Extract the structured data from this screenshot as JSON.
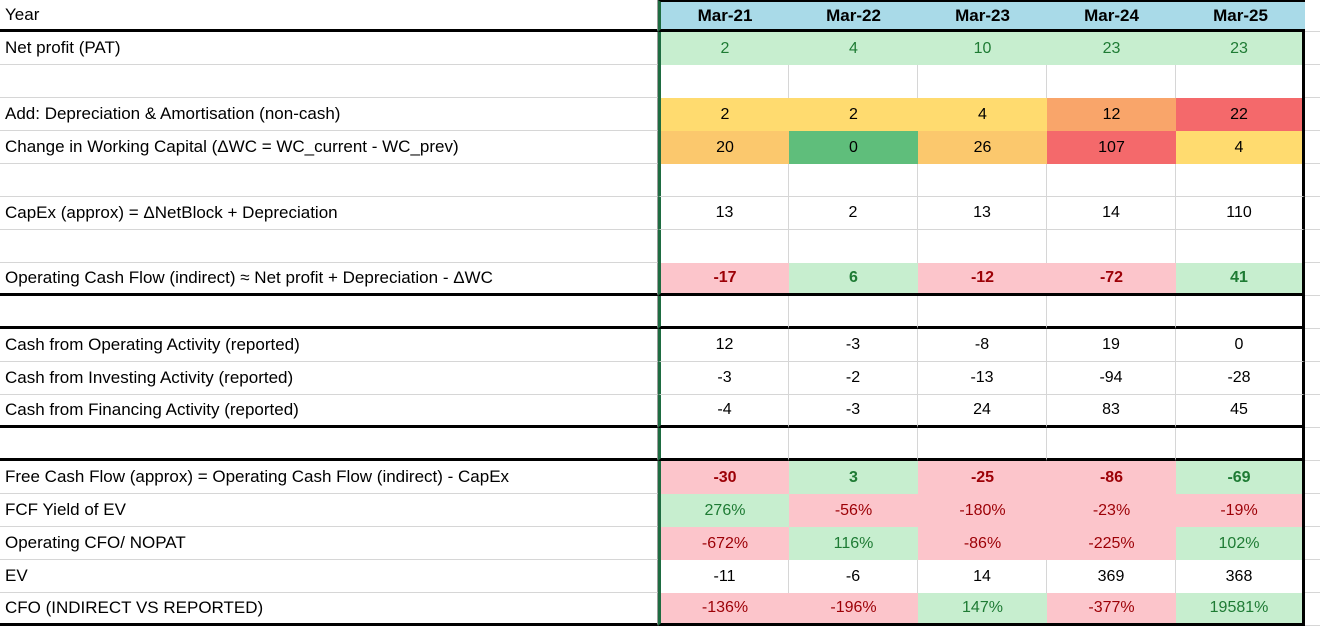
{
  "sheet": {
    "corner_label": "Year",
    "columns": [
      "Mar-21",
      "Mar-22",
      "Mar-23",
      "Mar-24",
      "Mar-25"
    ],
    "rows": [
      {
        "label": "Net profit (PAT)",
        "values": [
          "2",
          "4",
          "10",
          "23",
          "23"
        ],
        "styles": [
          "good",
          "good",
          "good",
          "good",
          "good"
        ],
        "bold": false,
        "thick_bottom": false
      },
      {
        "label": "",
        "values": [
          "",
          "",
          "",
          "",
          ""
        ],
        "styles": [
          "blank",
          "blank",
          "blank",
          "blank",
          "blank"
        ],
        "bold": false,
        "thick_bottom": false
      },
      {
        "label": "Add: Depreciation & Amortisation (non-cash)",
        "values": [
          "2",
          "2",
          "4",
          "12",
          "22"
        ],
        "styles": [
          "y",
          "y",
          "y",
          "o",
          "r"
        ],
        "bold": false,
        "thick_bottom": false
      },
      {
        "label": "Change in Working Capital (ΔWC = WC_current - WC_prev)",
        "values": [
          "20",
          "0",
          "26",
          "107",
          "4"
        ],
        "styles": [
          "lo",
          "gs",
          "lo",
          "r",
          "y"
        ],
        "bold": false,
        "thick_bottom": false
      },
      {
        "label": "",
        "values": [
          "",
          "",
          "",
          "",
          ""
        ],
        "styles": [
          "blank",
          "blank",
          "blank",
          "blank",
          "blank"
        ],
        "bold": false,
        "thick_bottom": false
      },
      {
        "label": "CapEx (approx) = ΔNetBlock + Depreciation",
        "values": [
          "13",
          "2",
          "13",
          "14",
          "110"
        ],
        "styles": [
          "plain",
          "plain",
          "plain",
          "plain",
          "plain"
        ],
        "bold": false,
        "thick_bottom": false
      },
      {
        "label": "",
        "values": [
          "",
          "",
          "",
          "",
          ""
        ],
        "styles": [
          "blank",
          "blank",
          "blank",
          "blank",
          "blank"
        ],
        "bold": false,
        "thick_bottom": false
      },
      {
        "label": "Operating Cash Flow (indirect) ≈ Net profit + Depreciation - ΔWC",
        "values": [
          "-17",
          "6",
          "-12",
          "-72",
          "41"
        ],
        "styles": [
          "bad",
          "good",
          "bad",
          "bad",
          "good"
        ],
        "bold": true,
        "thick_bottom": true
      },
      {
        "label": "",
        "values": [
          "",
          "",
          "",
          "",
          ""
        ],
        "styles": [
          "blank",
          "blank",
          "blank",
          "blank",
          "blank"
        ],
        "bold": false,
        "thick_bottom": true
      },
      {
        "label": "Cash from Operating Activity (reported)",
        "values": [
          "12",
          "-3",
          "-8",
          "19",
          "0"
        ],
        "styles": [
          "plain",
          "plain",
          "plain",
          "plain",
          "plain"
        ],
        "bold": false,
        "thick_bottom": false
      },
      {
        "label": "Cash from Investing Activity (reported)",
        "values": [
          "-3",
          "-2",
          "-13",
          "-94",
          "-28"
        ],
        "styles": [
          "plain",
          "plain",
          "plain",
          "plain",
          "plain"
        ],
        "bold": false,
        "thick_bottom": false
      },
      {
        "label": "Cash from Financing Activity (reported)",
        "values": [
          "-4",
          "-3",
          "24",
          "83",
          "45"
        ],
        "styles": [
          "plain",
          "plain",
          "plain",
          "plain",
          "plain"
        ],
        "bold": false,
        "thick_bottom": true
      },
      {
        "label": "",
        "values": [
          "",
          "",
          "",
          "",
          ""
        ],
        "styles": [
          "blank",
          "blank",
          "blank",
          "blank",
          "blank"
        ],
        "bold": false,
        "thick_bottom": true
      },
      {
        "label": "Free Cash Flow (approx) = Operating Cash Flow (indirect) - CapEx",
        "values": [
          "-30",
          "3",
          "-25",
          "-86",
          "-69"
        ],
        "styles": [
          "bad",
          "good",
          "bad",
          "bad",
          "good"
        ],
        "bold": true,
        "thick_bottom": false
      },
      {
        "label": "FCF Yield of EV",
        "values": [
          "276%",
          "-56%",
          "-180%",
          "-23%",
          "-19%"
        ],
        "styles": [
          "good",
          "bad",
          "bad",
          "bad",
          "bad"
        ],
        "bold": false,
        "thick_bottom": false
      },
      {
        "label": "Operating CFO/ NOPAT",
        "values": [
          "-672%",
          "116%",
          "-86%",
          "-225%",
          "102%"
        ],
        "styles": [
          "bad",
          "good",
          "bad",
          "bad",
          "good"
        ],
        "bold": false,
        "thick_bottom": false
      },
      {
        "label": "EV",
        "values": [
          "-11",
          "-6",
          "14",
          "369",
          "368"
        ],
        "styles": [
          "plain",
          "plain",
          "plain",
          "plain",
          "plain"
        ],
        "bold": false,
        "thick_bottom": false
      },
      {
        "label": "CFO (INDIRECT VS REPORTED)",
        "values": [
          "-136%",
          "-196%",
          "147%",
          "-377%",
          "19581%"
        ],
        "styles": [
          "bad",
          "bad",
          "good",
          "bad",
          "good"
        ],
        "bold": false,
        "thick_bottom": true
      }
    ]
  },
  "colors": {
    "header_fill": "#a9dae8",
    "good_fill": "#c7eecf",
    "good_text": "#1e7b34",
    "bad_fill": "#fcc5cb",
    "bad_text": "#9c0006",
    "scale_yellow": "#ffdb6f",
    "scale_light_orange": "#fbc86d",
    "scale_orange": "#f9a56a",
    "scale_red": "#f4696b",
    "scale_green": "#5fbe7b",
    "divider_green": "#1e6c41",
    "gridline": "#d6d6d6",
    "section_border": "#000000"
  }
}
